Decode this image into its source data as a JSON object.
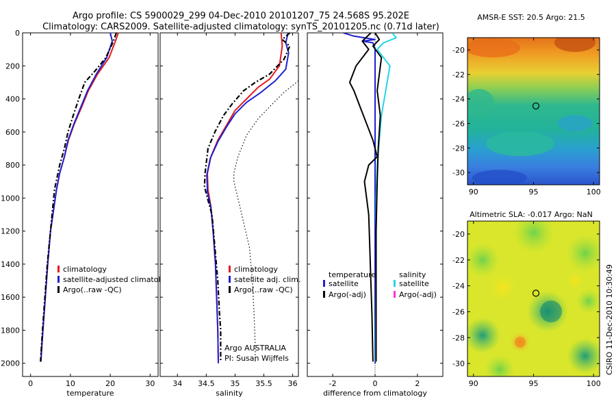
{
  "title_line1": "Argo profile: CS 5900029_299 04-Dec-2010 20101207_75 24.568S 95.202E",
  "title_line2": "Climatology: CARS2009. Satellite-adjusted climatology: synTS_20101205.nc (0.71d later)",
  "side_stamp": "CSIRO 11-Dec-2010 10:30:49",
  "colors": {
    "climatology": "#e31a1c",
    "satellite": "#1f1fd0",
    "argo": "#000000",
    "sat_cyan": "#22d6e6",
    "argo_adj": "#ff33cc"
  },
  "chart_data": [
    {
      "type": "line",
      "id": "temperature",
      "xlabel": "temperature",
      "ylabel": "",
      "xlim": [
        -2,
        32
      ],
      "ylim": [
        0,
        2080
      ],
      "y_reversed": true,
      "xticks": [
        0,
        10,
        20,
        30
      ],
      "yticks": [
        0,
        200,
        400,
        600,
        800,
        1000,
        1200,
        1400,
        1600,
        1800,
        2000
      ],
      "legend": [
        "climatology",
        "satellite-adjusted climatology",
        "Argo(..raw -QC)"
      ],
      "series": [
        {
          "name": "climatology",
          "style": "solid",
          "color": "#e31a1c",
          "points": [
            [
              22,
              0
            ],
            [
              21.3,
              50
            ],
            [
              19.7,
              150
            ],
            [
              16.8,
              250
            ],
            [
              14.5,
              350
            ],
            [
              12.8,
              450
            ],
            [
              11,
              550
            ],
            [
              9.5,
              650
            ],
            [
              8.5,
              750
            ],
            [
              7.3,
              850
            ],
            [
              6.5,
              950
            ],
            [
              5.6,
              1100
            ],
            [
              5,
              1200
            ],
            [
              4.3,
              1400
            ],
            [
              3.7,
              1600
            ],
            [
              3.1,
              1800
            ],
            [
              2.6,
              1950
            ]
          ]
        },
        {
          "name": "satellite-adjusted climatology",
          "style": "solid",
          "color": "#1f1fd0",
          "points": [
            [
              20,
              0
            ],
            [
              20.5,
              50
            ],
            [
              19.1,
              150
            ],
            [
              16.5,
              250
            ],
            [
              14.3,
              350
            ],
            [
              12.6,
              450
            ],
            [
              10.9,
              550
            ],
            [
              9.4,
              650
            ],
            [
              8.5,
              750
            ],
            [
              7.3,
              850
            ],
            [
              6.5,
              950
            ],
            [
              5.6,
              1100
            ],
            [
              5,
              1200
            ],
            [
              4.3,
              1400
            ],
            [
              3.7,
              1600
            ],
            [
              3.1,
              1800
            ],
            [
              2.6,
              1990
            ]
          ]
        },
        {
          "name": "Argo(..raw -QC)",
          "style": "dashdot",
          "color": "#000000",
          "points": [
            [
              21.5,
              0
            ],
            [
              20.8,
              50
            ],
            [
              18.9,
              150
            ],
            [
              16.2,
              230
            ],
            [
              13.6,
              300
            ],
            [
              12.1,
              400
            ],
            [
              10.7,
              500
            ],
            [
              9.4,
              600
            ],
            [
              8.5,
              700
            ],
            [
              7.3,
              800
            ],
            [
              6,
              950
            ],
            [
              5.4,
              1100
            ],
            [
              4.8,
              1250
            ],
            [
              4.2,
              1400
            ],
            [
              3.6,
              1600
            ],
            [
              3,
              1800
            ],
            [
              2.5,
              1990
            ]
          ]
        }
      ],
      "annotations": []
    },
    {
      "type": "line",
      "id": "salinity",
      "xlabel": "salinity",
      "ylabel": "",
      "xlim": [
        33.7,
        36.1
      ],
      "ylim": [
        0,
        2080
      ],
      "y_reversed": true,
      "xticks": [
        34,
        34.5,
        35,
        35.5,
        36
      ],
      "yticks": [
        0,
        200,
        400,
        600,
        800,
        1000,
        1200,
        1400,
        1600,
        1800,
        2000
      ],
      "legend": [
        "climatology",
        "satellite adj. clim.",
        "Argo(..raw -QC)"
      ],
      "series": [
        {
          "name": "climatology",
          "style": "solid",
          "color": "#e31a1c",
          "points": [
            [
              35.8,
              0
            ],
            [
              35.82,
              80
            ],
            [
              35.77,
              200
            ],
            [
              35.6,
              280
            ],
            [
              35.4,
              330
            ],
            [
              35.2,
              400
            ],
            [
              35,
              470
            ],
            [
              34.85,
              560
            ],
            [
              34.7,
              650
            ],
            [
              34.58,
              750
            ],
            [
              34.52,
              850
            ],
            [
              34.53,
              950
            ],
            [
              34.58,
              1050
            ],
            [
              34.62,
              1200
            ],
            [
              34.66,
              1400
            ],
            [
              34.68,
              1600
            ],
            [
              34.7,
              1800
            ],
            [
              34.71,
              2000
            ]
          ]
        },
        {
          "name": "satellite adj. clim.",
          "style": "solid",
          "color": "#1f1fd0",
          "points": [
            [
              35.92,
              0
            ],
            [
              35.88,
              60
            ],
            [
              35.93,
              120
            ],
            [
              35.88,
              220
            ],
            [
              35.7,
              290
            ],
            [
              35.45,
              360
            ],
            [
              35.2,
              420
            ],
            [
              35,
              490
            ],
            [
              34.85,
              570
            ],
            [
              34.7,
              660
            ],
            [
              34.57,
              760
            ],
            [
              34.51,
              860
            ],
            [
              34.52,
              960
            ],
            [
              34.58,
              1060
            ],
            [
              34.62,
              1200
            ],
            [
              34.66,
              1400
            ],
            [
              34.68,
              1600
            ],
            [
              34.7,
              1800
            ],
            [
              34.71,
              2000
            ]
          ]
        },
        {
          "name": "Argo(..raw -QC)",
          "style": "dashdot",
          "color": "#000000",
          "points": [
            [
              35.95,
              0
            ],
            [
              35.82,
              40
            ],
            [
              35.95,
              80
            ],
            [
              35.85,
              160
            ],
            [
              35.6,
              250
            ],
            [
              35.35,
              300
            ],
            [
              35.15,
              350
            ],
            [
              34.95,
              430
            ],
            [
              34.8,
              500
            ],
            [
              34.65,
              600
            ],
            [
              34.53,
              700
            ],
            [
              34.48,
              850
            ],
            [
              34.47,
              930
            ],
            [
              34.52,
              1000
            ],
            [
              34.6,
              1100
            ],
            [
              34.65,
              1300
            ],
            [
              34.7,
              1500
            ],
            [
              34.73,
              1700
            ],
            [
              34.75,
              1800
            ],
            [
              34.75,
              1990
            ]
          ]
        },
        {
          "name": "",
          "style": "dotted",
          "color": "#000000",
          "points": [
            [
              36.1,
              290
            ],
            [
              35.85,
              360
            ],
            [
              35.65,
              430
            ],
            [
              35.4,
              520
            ],
            [
              35.2,
              620
            ],
            [
              35.05,
              750
            ],
            [
              34.98,
              850
            ],
            [
              34.98,
              900
            ],
            [
              35.05,
              1000
            ],
            [
              35.15,
              1150
            ],
            [
              35.25,
              1300
            ],
            [
              35.3,
              1500
            ],
            [
              35.33,
              1700
            ],
            [
              35.35,
              1900
            ],
            [
              35.35,
              2000
            ]
          ]
        }
      ],
      "annotations": [
        "Argo AUSTRALIA",
        "PI: Susan Wijffels"
      ]
    },
    {
      "type": "line",
      "id": "difference",
      "xlabel": "difference from climatology",
      "ylabel": "",
      "xlim": [
        -3.2,
        3.2
      ],
      "ylim": [
        0,
        2080
      ],
      "y_reversed": true,
      "xticks": [
        -2,
        0,
        2
      ],
      "yticks": [
        0,
        200,
        400,
        600,
        800,
        1000,
        1200,
        1400,
        1600,
        1800,
        2000
      ],
      "legend_headers": [
        "temperature",
        "salinity"
      ],
      "legend": [
        "satellite",
        "Argo(-adj)",
        "satellite",
        "Argo(-adj)"
      ],
      "series": [
        {
          "name": "temperature satellite",
          "style": "solid",
          "color": "#1f1fd0",
          "points": [
            [
              -1.5,
              0
            ],
            [
              -1,
              20
            ],
            [
              0,
              40
            ],
            [
              -0.6,
              50
            ],
            [
              -0.1,
              60
            ],
            [
              0,
              100
            ],
            [
              0,
              200
            ],
            [
              0,
              400
            ],
            [
              0,
              2000
            ]
          ]
        },
        {
          "name": "temperature Argo(-adj)",
          "style": "solid",
          "color": "#000000",
          "points": [
            [
              -0.2,
              0
            ],
            [
              -0.6,
              50
            ],
            [
              -0.3,
              100
            ],
            [
              -0.9,
              200
            ],
            [
              -1.2,
              300
            ],
            [
              -1,
              350
            ],
            [
              -0.7,
              450
            ],
            [
              -0.4,
              550
            ],
            [
              -0.1,
              650
            ],
            [
              0.1,
              750
            ],
            [
              -0.3,
              800
            ],
            [
              -0.5,
              900
            ],
            [
              -0.4,
              1000
            ],
            [
              -0.3,
              1100
            ],
            [
              -0.25,
              1300
            ],
            [
              -0.2,
              1500
            ],
            [
              -0.15,
              1700
            ],
            [
              -0.1,
              1990
            ]
          ]
        },
        {
          "name": "salinity satellite",
          "style": "solid",
          "color": "#22d6e6",
          "points": [
            [
              0.8,
              0
            ],
            [
              1,
              30
            ],
            [
              0.4,
              60
            ],
            [
              0.1,
              100
            ],
            [
              0.7,
              200
            ],
            [
              0.5,
              350
            ],
            [
              0.3,
              500
            ],
            [
              0.2,
              650
            ],
            [
              0.1,
              800
            ],
            [
              0.05,
              1000
            ],
            [
              0.05,
              1400
            ],
            [
              0.03,
              1800
            ],
            [
              0.02,
              1990
            ]
          ]
        },
        {
          "name": "salinity Argo(-adj)",
          "style": "solid",
          "color": "#000000",
          "points": [
            [
              0,
              0
            ],
            [
              0.2,
              40
            ],
            [
              -0.1,
              80
            ],
            [
              0.3,
              150
            ],
            [
              0.2,
              250
            ],
            [
              0.1,
              350
            ],
            [
              0.25,
              500
            ],
            [
              0.15,
              700
            ],
            [
              0.1,
              900
            ],
            [
              0.05,
              1200
            ],
            [
              0.05,
              1600
            ],
            [
              0.05,
              1990
            ]
          ]
        }
      ],
      "annotations": []
    }
  ],
  "maps": [
    {
      "id": "sst",
      "title": "AMSR-E SST: 20.5 Argo: 21.5",
      "xticks": [
        90,
        95,
        100
      ],
      "yticks": [
        -20,
        -22,
        -24,
        -26,
        -28,
        -30
      ],
      "xlim": [
        89.5,
        100.5
      ],
      "ylim": [
        -31,
        -19
      ],
      "marker": [
        95.2,
        -24.57
      ]
    },
    {
      "id": "sla",
      "title": "Altimetric SLA: -0.017 Argo: NaN",
      "xticks": [
        90,
        95,
        100
      ],
      "yticks": [
        -20,
        -22,
        -24,
        -26,
        -28,
        -30
      ],
      "xlim": [
        89.5,
        100.5
      ],
      "ylim": [
        -31,
        -19
      ],
      "marker": [
        95.2,
        -24.57
      ]
    }
  ]
}
